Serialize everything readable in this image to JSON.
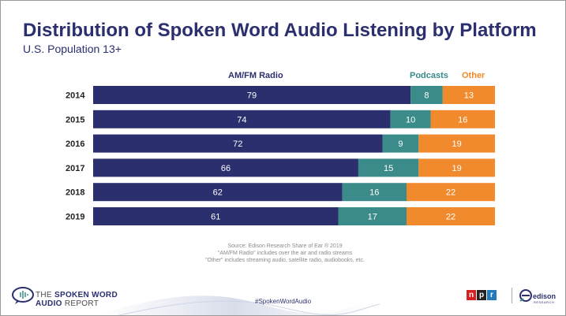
{
  "chart_data": {
    "type": "bar",
    "orientation": "horizontal",
    "stacked": true,
    "title": "Distribution of Spoken Word Audio Listening by Platform",
    "subtitle": "U.S. Population 13+",
    "categories": [
      "2014",
      "2015",
      "2016",
      "2017",
      "2018",
      "2019"
    ],
    "series": [
      {
        "name": "AM/FM Radio",
        "values": [
          79,
          74,
          72,
          66,
          62,
          61
        ],
        "color": "#2b2f6e"
      },
      {
        "name": "Podcasts",
        "values": [
          8,
          10,
          9,
          15,
          16,
          17
        ],
        "color": "#3a8b8a"
      },
      {
        "name": "Other",
        "values": [
          13,
          16,
          19,
          19,
          22,
          22
        ],
        "color": "#f08a2c"
      }
    ],
    "xlim": [
      0,
      100
    ],
    "grid": false,
    "legend": "top"
  },
  "footer": {
    "source_lines": [
      "Source: Edison Research Share of Ear ® 2019",
      "\"AM/FM Radio\" includes over the air and radio streams",
      "\"Other\" includes streaming audio, satellite radio, audiobooks, etc."
    ],
    "brand_line1_prefix": "THE",
    "brand_line1_bold": "SPOKEN WORD",
    "brand_line2_bold": "AUDIO",
    "brand_line2_suffix": "REPORT",
    "hashtag": "#SpokenWordAudio",
    "npr_letters": [
      "n",
      "p",
      "r"
    ],
    "npr_colors": [
      "#d62021",
      "#222222",
      "#237bbd"
    ],
    "edison_name": "edison",
    "edison_sub": "RESEARCH"
  }
}
